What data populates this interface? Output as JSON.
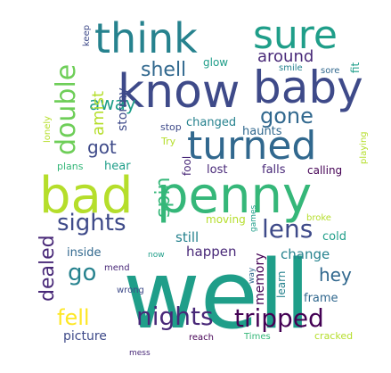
{
  "palette": {
    "dark_purple": "#440154",
    "indigo": "#482878",
    "blue_purple": "#3e4a89",
    "steel_blue": "#31688e",
    "teal_blue": "#26828e",
    "teal": "#1f9e89",
    "green_teal": "#35b779",
    "green": "#6ece58",
    "yellow_green": "#b5de2b",
    "yellow": "#fde725"
  },
  "words": [
    {
      "text": "well",
      "color": "teal"
    },
    {
      "text": "bad",
      "color": "yellow_green"
    },
    {
      "text": "penny",
      "color": "green_teal"
    },
    {
      "text": "know",
      "color": "blue_purple"
    },
    {
      "text": "baby",
      "color": "blue_purple"
    },
    {
      "text": "turned",
      "color": "steel_blue"
    },
    {
      "text": "think",
      "color": "teal_blue"
    },
    {
      "text": "sure",
      "color": "teal"
    },
    {
      "text": "double",
      "color": "green"
    },
    {
      "text": "nights",
      "color": "indigo"
    },
    {
      "text": "tripped",
      "color": "dark_purple"
    },
    {
      "text": "sights",
      "color": "blue_purple"
    },
    {
      "text": "lens",
      "color": "blue_purple"
    },
    {
      "text": "gone",
      "color": "steel_blue"
    },
    {
      "text": "shell",
      "color": "steel_blue"
    },
    {
      "text": "away",
      "color": "teal"
    },
    {
      "text": "spin",
      "color": "green_teal"
    },
    {
      "text": "got",
      "color": "blue_purple"
    },
    {
      "text": "go",
      "color": "teal_blue"
    },
    {
      "text": "fell",
      "color": "yellow"
    },
    {
      "text": "dealed",
      "color": "indigo"
    },
    {
      "text": "hey",
      "color": "steel_blue"
    },
    {
      "text": "around",
      "color": "indigo"
    },
    {
      "text": "amist",
      "color": "yellow_green"
    },
    {
      "text": "stormy",
      "color": "blue_purple"
    },
    {
      "text": "change",
      "color": "teal_blue"
    },
    {
      "text": "happen",
      "color": "indigo"
    },
    {
      "text": "still",
      "color": "teal_blue"
    },
    {
      "text": "memory",
      "color": "dark_purple"
    },
    {
      "text": "learn",
      "color": "teal_blue"
    },
    {
      "text": "picture",
      "color": "blue_purple"
    },
    {
      "text": "inside",
      "color": "steel_blue"
    },
    {
      "text": "hear",
      "color": "teal"
    },
    {
      "text": "changed",
      "color": "teal_blue"
    },
    {
      "text": "haunts",
      "color": "steel_blue"
    },
    {
      "text": "frame",
      "color": "steel_blue"
    },
    {
      "text": "cold",
      "color": "teal"
    },
    {
      "text": "moving",
      "color": "yellow_green"
    },
    {
      "text": "lost",
      "color": "indigo"
    },
    {
      "text": "falls",
      "color": "indigo"
    },
    {
      "text": "calling",
      "color": "dark_purple"
    },
    {
      "text": "fool",
      "color": "indigo"
    },
    {
      "text": "glow",
      "color": "teal"
    },
    {
      "text": "fit",
      "color": "teal"
    },
    {
      "text": "sore",
      "color": "steel_blue"
    },
    {
      "text": "smile",
      "color": "teal_blue"
    },
    {
      "text": "keep",
      "color": "blue_purple"
    },
    {
      "text": "stop",
      "color": "blue_purple"
    },
    {
      "text": "Try",
      "color": "yellow_green"
    },
    {
      "text": "plans",
      "color": "green_teal"
    },
    {
      "text": "lonely",
      "color": "yellow_green"
    },
    {
      "text": "playing",
      "color": "yellow_green"
    },
    {
      "text": "broke",
      "color": "yellow_green"
    },
    {
      "text": "games",
      "color": "teal"
    },
    {
      "text": "mend",
      "color": "indigo"
    },
    {
      "text": "now",
      "color": "teal"
    },
    {
      "text": "wrong",
      "color": "blue_purple"
    },
    {
      "text": "way",
      "color": "steel_blue"
    },
    {
      "text": "mess",
      "color": "indigo"
    },
    {
      "text": "reach",
      "color": "dark_purple"
    },
    {
      "text": "Times",
      "color": "green_teal"
    },
    {
      "text": "cracked",
      "color": "yellow_green"
    }
  ]
}
